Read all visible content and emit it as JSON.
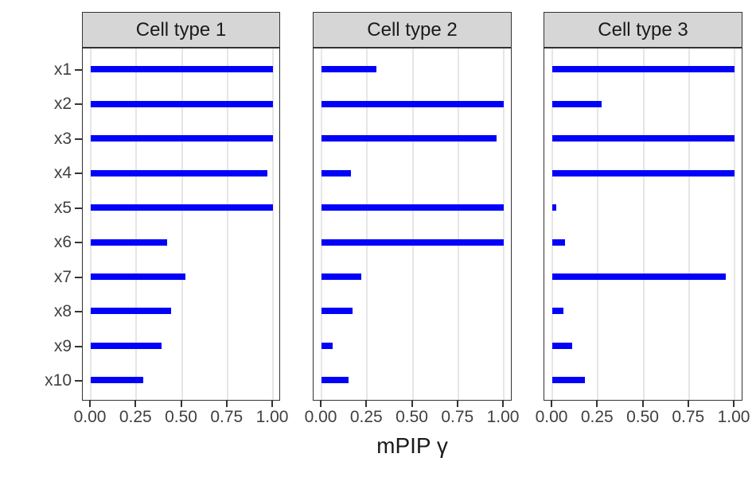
{
  "chart_data": {
    "type": "bar",
    "orientation": "horizontal",
    "title": "",
    "xlabel": "mPIP γ",
    "ylabel": "",
    "categories": [
      "x1",
      "x2",
      "x3",
      "x4",
      "x5",
      "x6",
      "x7",
      "x8",
      "x9",
      "x10"
    ],
    "x_tick_labels": [
      "0.00",
      "0.25",
      "0.50",
      "0.75",
      "1.00"
    ],
    "x_tick_values": [
      0,
      0.25,
      0.5,
      0.75,
      1.0
    ],
    "xlim": [
      0,
      1
    ],
    "grid": "vertical-major-only",
    "legend": "none",
    "facets": [
      {
        "label": "Cell type 1",
        "values": [
          1.0,
          1.0,
          1.0,
          0.97,
          1.0,
          0.42,
          0.52,
          0.44,
          0.39,
          0.29
        ]
      },
      {
        "label": "Cell type 2",
        "values": [
          0.3,
          1.0,
          0.96,
          0.16,
          1.0,
          1.0,
          0.22,
          0.17,
          0.06,
          0.15
        ]
      },
      {
        "label": "Cell type 3",
        "values": [
          1.0,
          0.27,
          1.0,
          1.0,
          0.02,
          0.07,
          0.95,
          0.06,
          0.11,
          0.18
        ]
      }
    ],
    "colors": {
      "bar": "#0202fa",
      "strip_background": "#d6d6d6",
      "panel_border": "#333333",
      "gridline": "#e6e6e6",
      "axis_text": "#404040",
      "strip_text": "#1a1a1a"
    }
  }
}
